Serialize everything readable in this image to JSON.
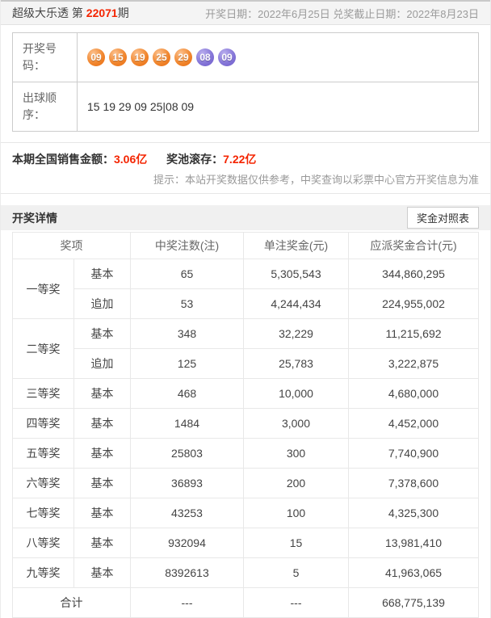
{
  "header": {
    "title_prefix": "超级大乐透 第 ",
    "issue_number": "22071",
    "issue_suffix": "期",
    "draw_date": "开奖日期：2022年6月25日",
    "deadline": "兑奖截止日期：2022年8月23日"
  },
  "draw_info": {
    "numbers_label": "开奖号码：",
    "front_numbers": [
      "09",
      "15",
      "19",
      "25",
      "29"
    ],
    "back_numbers": [
      "08",
      "09"
    ],
    "order_label": "出球顺序：",
    "order_value": "15 19 29 09 25|08 09"
  },
  "sales": {
    "sales_label": "本期全国销售金额：",
    "sales_value": "3.06亿",
    "pool_label": "奖池滚存：",
    "pool_value": "7.22亿",
    "hint": "提示：本站开奖数据仅供参考，中奖查询以彩票中心官方开奖信息为准"
  },
  "details": {
    "title": "开奖详情",
    "compare_button": "奖金对照表",
    "columns": [
      "奖项",
      "中奖注数(注)",
      "单注奖金(元)",
      "应派奖金合计(元)"
    ],
    "prizes": [
      {
        "name": "一等奖",
        "entries": [
          {
            "type": "基本",
            "count": "65",
            "single": "5,305,543",
            "total": "344,860,295"
          },
          {
            "type": "追加",
            "count": "53",
            "single": "4,244,434",
            "total": "224,955,002"
          }
        ]
      },
      {
        "name": "二等奖",
        "entries": [
          {
            "type": "基本",
            "count": "348",
            "single": "32,229",
            "total": "11,215,692"
          },
          {
            "type": "追加",
            "count": "125",
            "single": "25,783",
            "total": "3,222,875"
          }
        ]
      },
      {
        "name": "三等奖",
        "entries": [
          {
            "type": "基本",
            "count": "468",
            "single": "10,000",
            "total": "4,680,000"
          }
        ]
      },
      {
        "name": "四等奖",
        "entries": [
          {
            "type": "基本",
            "count": "1484",
            "single": "3,000",
            "total": "4,452,000"
          }
        ]
      },
      {
        "name": "五等奖",
        "entries": [
          {
            "type": "基本",
            "count": "25803",
            "single": "300",
            "total": "7,740,900"
          }
        ]
      },
      {
        "name": "六等奖",
        "entries": [
          {
            "type": "基本",
            "count": "36893",
            "single": "200",
            "total": "7,378,600"
          }
        ]
      },
      {
        "name": "七等奖",
        "entries": [
          {
            "type": "基本",
            "count": "43253",
            "single": "100",
            "total": "4,325,300"
          }
        ]
      },
      {
        "name": "八等奖",
        "entries": [
          {
            "type": "基本",
            "count": "932094",
            "single": "15",
            "total": "13,981,410"
          }
        ]
      },
      {
        "name": "九等奖",
        "entries": [
          {
            "type": "基本",
            "count": "8392613",
            "single": "5",
            "total": "41,963,065"
          }
        ]
      }
    ],
    "total_row": {
      "label": "合计",
      "count": "---",
      "single": "---",
      "total": "668,775,139"
    }
  },
  "colors": {
    "accent_red": "#f42400",
    "ball_front_orange": "#ee7512",
    "ball_back_purple": "#7a68cd",
    "bar_gray": "#f0f0f0"
  }
}
